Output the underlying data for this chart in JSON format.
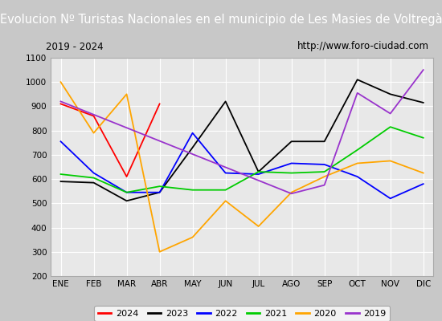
{
  "title": "Evolucion Nº Turistas Nacionales en el municipio de Les Masies de Voltregà",
  "subtitle_left": "2019 - 2024",
  "subtitle_right": "http://www.foro-ciudad.com",
  "months": [
    "ENE",
    "FEB",
    "MAR",
    "ABR",
    "MAY",
    "JUN",
    "JUL",
    "AGO",
    "SEP",
    "OCT",
    "NOV",
    "DIC"
  ],
  "ylim": [
    200,
    1100
  ],
  "yticks": [
    200,
    300,
    400,
    500,
    600,
    700,
    800,
    900,
    1000,
    1100
  ],
  "series": {
    "2024": {
      "color": "#ff0000",
      "values": [
        910,
        860,
        610,
        910,
        null,
        null,
        null,
        null,
        null,
        null,
        null,
        null
      ]
    },
    "2023": {
      "color": "#000000",
      "values": [
        590,
        585,
        510,
        545,
        730,
        920,
        630,
        755,
        755,
        1010,
        950,
        915
      ]
    },
    "2022": {
      "color": "#0000ff",
      "values": [
        755,
        625,
        545,
        545,
        790,
        625,
        620,
        665,
        660,
        610,
        520,
        580
      ]
    },
    "2021": {
      "color": "#00cc00",
      "values": [
        620,
        605,
        545,
        570,
        555,
        555,
        630,
        625,
        630,
        720,
        815,
        770
      ]
    },
    "2020": {
      "color": "#ffa500",
      "values": [
        1000,
        790,
        950,
        300,
        360,
        510,
        405,
        545,
        610,
        665,
        675,
        625
      ]
    },
    "2019": {
      "color": "#9933cc",
      "values": [
        920,
        null,
        null,
        null,
        null,
        null,
        null,
        540,
        575,
        955,
        870,
        1050
      ]
    }
  },
  "title_bg": "#4d7cc7",
  "title_color": "#ffffff",
  "title_fontsize": 10.5,
  "subtitle_fontsize": 8.5,
  "plot_bg": "#e8e8e8",
  "outer_bg": "#c8c8c8",
  "grid_color": "#ffffff",
  "legend_order": [
    "2024",
    "2023",
    "2022",
    "2021",
    "2020",
    "2019"
  ],
  "tick_fontsize": 7.5
}
